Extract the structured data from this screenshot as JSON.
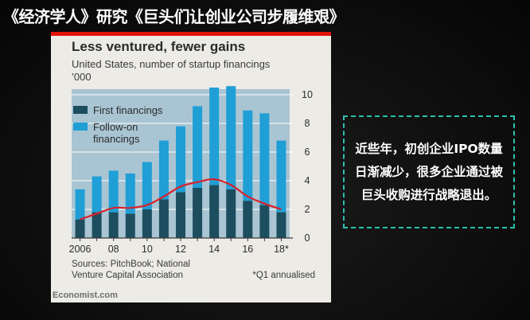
{
  "slide": {
    "title": "《经济学人》研究《巨头们让创业公司步履维艰》",
    "callout": "近些年，初创企业IPO数量日渐减少，很多企业通过被巨头收购进行战略退出。"
  },
  "chart_meta": {
    "source_line1": "Sources: PitchBook; National",
    "source_line2": "Venture Capital Association",
    "footnote": "*Q1 annualised",
    "brand": "Economist.com"
  },
  "colors": {
    "first": "#1d4e5f",
    "followon": "#1f9fd6",
    "line": "#d9212b",
    "accent_red": "#e3120b",
    "grid": "#ffffff",
    "callout_border": "#2bbfb0"
  },
  "chart_data": {
    "type": "bar",
    "stacked": true,
    "title": "Less ventured, fewer gains",
    "subtitle": "United States, number of startup financings",
    "unit": "’000",
    "categories": [
      "2006",
      "2007",
      "2008",
      "2009",
      "2010",
      "2011",
      "2012",
      "2013",
      "2014",
      "2015",
      "2016",
      "2017",
      "2018*"
    ],
    "x_tick_labels": [
      "2006",
      "",
      "08",
      "",
      "10",
      "",
      "12",
      "",
      "14",
      "",
      "16",
      "",
      "18*"
    ],
    "series": [
      {
        "name": "First financings",
        "values": [
          1.3,
          1.8,
          1.8,
          1.7,
          2.0,
          2.7,
          3.2,
          3.5,
          3.7,
          3.4,
          2.6,
          2.3,
          1.8
        ]
      },
      {
        "name": "Follow-on financings",
        "values": [
          2.1,
          2.5,
          2.9,
          2.8,
          3.3,
          4.1,
          4.6,
          5.7,
          6.8,
          7.2,
          6.3,
          6.4,
          5.0
        ]
      }
    ],
    "line_series": {
      "name": "",
      "values": [
        1.3,
        1.7,
        2.1,
        2.1,
        2.3,
        2.9,
        3.6,
        3.9,
        4.1,
        3.7,
        2.9,
        2.4,
        2.0
      ]
    },
    "legend": [
      "First financings",
      "Follow-on\nfinancings"
    ],
    "yticks": [
      "0",
      "2",
      "4",
      "6",
      "8",
      "10"
    ],
    "ylim": [
      0,
      11
    ],
    "ylabel": "",
    "xlabel": ""
  }
}
